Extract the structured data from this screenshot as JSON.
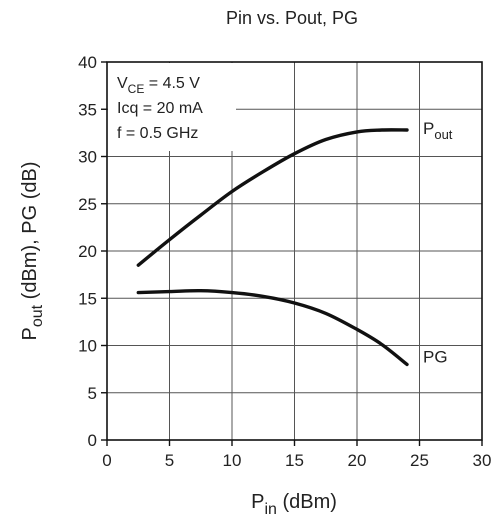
{
  "chart_data": {
    "type": "line",
    "title": "Pin vs. Pout, PG",
    "xlabel": {
      "main": "P",
      "sub": "in",
      "unit": "(dBm)"
    },
    "ylabel": {
      "main": "P",
      "sub": "out",
      "rest": "(dBm), PG (dB)"
    },
    "xlim": [
      0,
      30
    ],
    "ylim": [
      0,
      40
    ],
    "xticks": [
      0,
      5,
      10,
      15,
      20,
      25,
      30
    ],
    "yticks": [
      0,
      5,
      10,
      15,
      20,
      25,
      30,
      35,
      40
    ],
    "grid": true,
    "annotations": [
      {
        "main": "V",
        "sub": "CE",
        "rest": " = 4.5 V"
      },
      {
        "main": "Icq = 20 mA",
        "sub": "",
        "rest": ""
      },
      {
        "main": "f = 0.5 GHz",
        "sub": "",
        "rest": ""
      }
    ],
    "series": [
      {
        "name": "Pout",
        "label_main": "P",
        "label_sub": "out",
        "x": [
          2.5,
          5,
          7.5,
          10,
          12.5,
          15,
          17.5,
          20,
          22,
          24
        ],
        "y": [
          18.5,
          21.2,
          23.8,
          26.3,
          28.4,
          30.3,
          31.8,
          32.6,
          32.8,
          32.8
        ]
      },
      {
        "name": "PG",
        "label_main": "PG",
        "label_sub": "",
        "x": [
          2.5,
          5,
          7.5,
          10,
          12.5,
          15,
          17.5,
          20,
          22,
          24
        ],
        "y": [
          15.6,
          15.7,
          15.8,
          15.6,
          15.2,
          14.5,
          13.4,
          11.7,
          10.1,
          8.0
        ]
      }
    ]
  }
}
